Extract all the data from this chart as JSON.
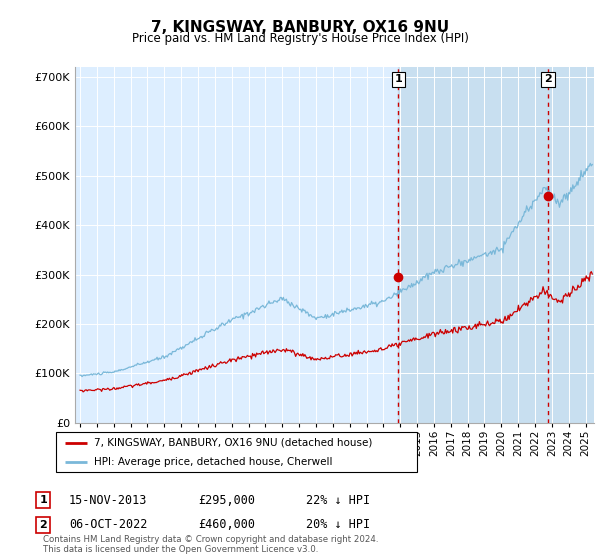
{
  "title": "7, KINGSWAY, BANBURY, OX16 9NU",
  "subtitle": "Price paid vs. HM Land Registry's House Price Index (HPI)",
  "ylim": [
    0,
    720000
  ],
  "xlim_start": 1994.7,
  "xlim_end": 2025.5,
  "hpi_color": "#7ab8d9",
  "price_color": "#cc0000",
  "vline_color": "#cc0000",
  "plot_bg_color": "#ddeeff",
  "shade_color": "#c8dff0",
  "legend_label_red": "7, KINGSWAY, BANBURY, OX16 9NU (detached house)",
  "legend_label_blue": "HPI: Average price, detached house, Cherwell",
  "annotation1_label": "1",
  "annotation1_date": "15-NOV-2013",
  "annotation1_price": "£295,000",
  "annotation1_hpi": "22% ↓ HPI",
  "annotation2_label": "2",
  "annotation2_date": "06-OCT-2022",
  "annotation2_price": "£460,000",
  "annotation2_hpi": "20% ↓ HPI",
  "footnote": "Contains HM Land Registry data © Crown copyright and database right 2024.\nThis data is licensed under the Open Government Licence v3.0.",
  "vline1_x": 2013.88,
  "vline2_x": 2022.77,
  "sale1_x": 2013.88,
  "sale1_y": 295000,
  "sale2_x": 2022.77,
  "sale2_y": 460000
}
